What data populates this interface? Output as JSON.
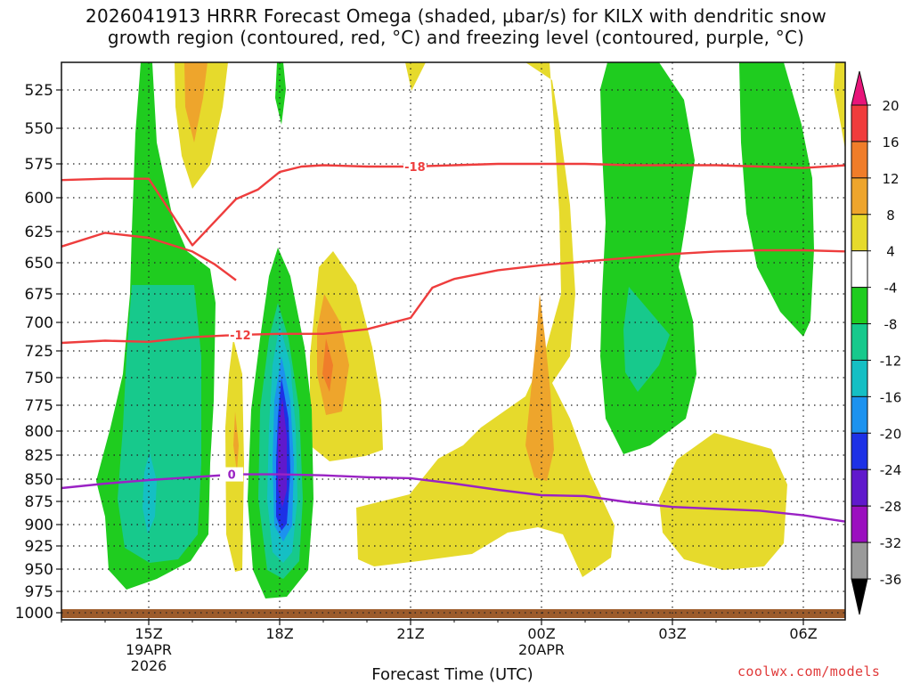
{
  "chart_data": {
    "type": "heatmap",
    "title_line1": "2026041913 HRRR Forecast Omega (shaded, μbar/s) for KILX with dendritic snow",
    "title_line2": "growth region (contoured, red, °C) and freezing level (contoured, purple, °C)",
    "xlabel": "Forecast Time (UTC)",
    "ylabel": "Pressure (hPa)",
    "credit": "coolwx.com/models",
    "y_ticks": [
      525,
      550,
      575,
      600,
      625,
      650,
      675,
      700,
      725,
      750,
      775,
      800,
      825,
      850,
      875,
      900,
      925,
      950,
      975,
      1000
    ],
    "y_tick_labels": [
      "525",
      "550",
      "575",
      "600",
      "625",
      "650",
      "675",
      "700",
      "725",
      "750",
      "775",
      "800",
      "825",
      "850",
      "875",
      "900",
      "925",
      "950",
      "975",
      "1000"
    ],
    "x_ticks": [
      {
        "hour": 15,
        "label": "15Z",
        "date": "19APR",
        "year": "2026"
      },
      {
        "hour": 18,
        "label": "18Z",
        "date": "",
        "year": ""
      },
      {
        "hour": 21,
        "label": "21Z",
        "date": "",
        "year": ""
      },
      {
        "hour": 24,
        "label": "00Z",
        "date": "20APR",
        "year": ""
      },
      {
        "hour": 27,
        "label": "03Z",
        "date": "",
        "year": ""
      },
      {
        "hour": 30,
        "label": "06Z",
        "date": "",
        "year": ""
      }
    ],
    "x_range_hours": [
      13.0,
      31.0
    ],
    "colorbar": {
      "labels": [
        "20",
        "16",
        "12",
        "8",
        "4",
        "-4",
        "-8",
        "-12",
        "-16",
        "-20",
        "-24",
        "-28",
        "-32",
        "-36"
      ],
      "colors": [
        "#e8157a",
        "#f03c3c",
        "#f07d2a",
        "#eea52c",
        "#e6da2c",
        "#e6dc33",
        "#ffffff",
        "#1fcc1f",
        "#17c98c",
        "#15bfc4",
        "#1c92ef",
        "#1d31e6",
        "#6019cc",
        "#9b0fbf",
        "#9a9a9a",
        "#000000"
      ]
    },
    "contours": [
      {
        "name": "-18 °C isotherm",
        "label": "-18",
        "color": "#ee3d3d",
        "points": [
          [
            13.0,
            587
          ],
          [
            14.0,
            586
          ],
          [
            15.0,
            586
          ],
          [
            16.0,
            636
          ],
          [
            17.0,
            601
          ],
          [
            17.5,
            594
          ],
          [
            18.0,
            581
          ],
          [
            18.5,
            577
          ],
          [
            19.0,
            576
          ],
          [
            20.0,
            577
          ],
          [
            21.0,
            577
          ],
          [
            22.0,
            576
          ],
          [
            23.0,
            575
          ],
          [
            24.0,
            575
          ],
          [
            25.0,
            575
          ],
          [
            26.0,
            576
          ],
          [
            27.0,
            576
          ],
          [
            28.0,
            576
          ],
          [
            29.0,
            577
          ],
          [
            30.0,
            578
          ],
          [
            31.0,
            576
          ]
        ]
      },
      {
        "name": "-12 °C isotherm",
        "label": "-12",
        "color": "#ee3d3d",
        "points": [
          [
            13.0,
            637
          ],
          [
            14.0,
            626
          ],
          [
            15.0,
            630
          ],
          [
            16.0,
            641
          ],
          [
            16.5,
            651
          ],
          [
            17.0,
            664
          ]
        ],
        "points_b": [
          [
            13.0,
            718
          ],
          [
            14.0,
            716
          ],
          [
            15.0,
            717
          ],
          [
            16.0,
            713
          ],
          [
            17.0,
            711
          ],
          [
            18.0,
            710
          ],
          [
            19.0,
            710
          ],
          [
            20.0,
            706
          ],
          [
            21.0,
            696
          ],
          [
            21.5,
            670
          ],
          [
            22.0,
            663
          ],
          [
            23.0,
            656
          ],
          [
            24.0,
            652
          ],
          [
            25.0,
            649
          ],
          [
            26.0,
            646
          ],
          [
            27.0,
            643
          ],
          [
            28.0,
            641
          ],
          [
            29.0,
            640
          ],
          [
            30.0,
            640
          ],
          [
            31.0,
            641
          ]
        ]
      },
      {
        "name": "0 °C freezing level",
        "label": "0",
        "color": "#9a22c4",
        "points": [
          [
            13.0,
            860
          ],
          [
            14.0,
            855
          ],
          [
            15.0,
            851
          ],
          [
            16.0,
            848
          ],
          [
            17.0,
            845
          ],
          [
            18.0,
            845
          ],
          [
            19.0,
            846
          ],
          [
            20.0,
            848
          ],
          [
            21.0,
            849
          ],
          [
            22.0,
            855
          ],
          [
            23.0,
            862
          ],
          [
            24.0,
            868
          ],
          [
            25.0,
            869
          ],
          [
            26.0,
            876
          ],
          [
            27.0,
            881
          ],
          [
            28.0,
            883
          ],
          [
            29.0,
            885
          ],
          [
            30.0,
            890
          ],
          [
            31.0,
            897
          ]
        ]
      }
    ]
  }
}
